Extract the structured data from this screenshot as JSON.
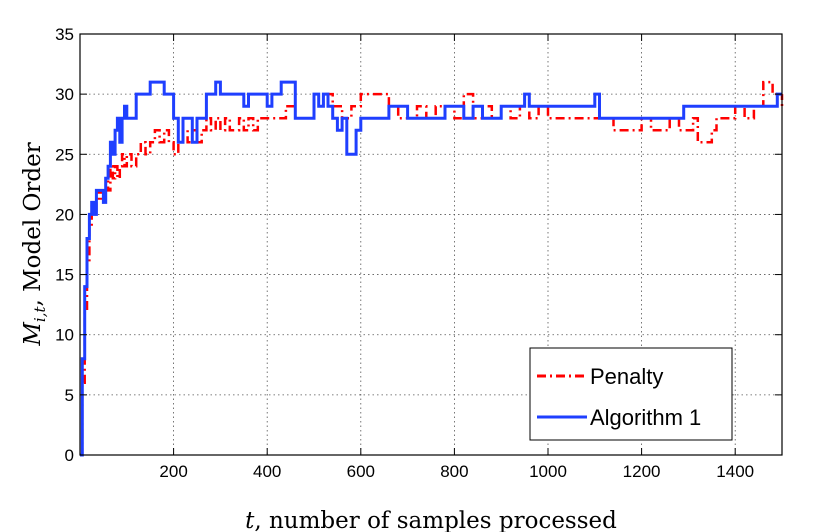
{
  "chart_data": {
    "type": "line",
    "title": "",
    "xlabel": "t, number of samples processed",
    "xlabel_var": "t",
    "xlabel_text": ", number of samples processed",
    "ylabel": "M_{i,t}, Model Order",
    "ylabel_var": "M",
    "ylabel_sub": "i,t",
    "ylabel_text": ", Model Order",
    "xlim": [
      0,
      1500
    ],
    "ylim": [
      0,
      35
    ],
    "xticks": [
      200,
      400,
      600,
      800,
      1000,
      1200,
      1400
    ],
    "yticks": [
      0,
      5,
      10,
      15,
      20,
      25,
      30,
      35
    ],
    "grid": true,
    "legend_position": "bottom-right",
    "series": [
      {
        "name": "Penalty",
        "color": "#ff0000",
        "style": "dash-dot",
        "points": [
          [
            0,
            0
          ],
          [
            5,
            6
          ],
          [
            10,
            12
          ],
          [
            15,
            16
          ],
          [
            20,
            19
          ],
          [
            25,
            21
          ],
          [
            30,
            20
          ],
          [
            35,
            21
          ],
          [
            40,
            22
          ],
          [
            45,
            21
          ],
          [
            50,
            22
          ],
          [
            55,
            23
          ],
          [
            60,
            22
          ],
          [
            65,
            24
          ],
          [
            70,
            23
          ],
          [
            75,
            24
          ],
          [
            80,
            23
          ],
          [
            85,
            24
          ],
          [
            90,
            25
          ],
          [
            95,
            24
          ],
          [
            100,
            25
          ],
          [
            110,
            24
          ],
          [
            120,
            25
          ],
          [
            130,
            26
          ],
          [
            140,
            25
          ],
          [
            150,
            26
          ],
          [
            160,
            27
          ],
          [
            170,
            26
          ],
          [
            180,
            27
          ],
          [
            190,
            26
          ],
          [
            200,
            25
          ],
          [
            210,
            26
          ],
          [
            220,
            27
          ],
          [
            230,
            26
          ],
          [
            240,
            27
          ],
          [
            250,
            26
          ],
          [
            260,
            27
          ],
          [
            270,
            28
          ],
          [
            280,
            27
          ],
          [
            290,
            28
          ],
          [
            300,
            27
          ],
          [
            310,
            28
          ],
          [
            320,
            27
          ],
          [
            340,
            28
          ],
          [
            350,
            27
          ],
          [
            360,
            28
          ],
          [
            370,
            27
          ],
          [
            380,
            28
          ],
          [
            400,
            28
          ],
          [
            420,
            28
          ],
          [
            440,
            29
          ],
          [
            460,
            28
          ],
          [
            480,
            28
          ],
          [
            500,
            29
          ],
          [
            520,
            30
          ],
          [
            540,
            29
          ],
          [
            560,
            28
          ],
          [
            580,
            29
          ],
          [
            600,
            30
          ],
          [
            620,
            30
          ],
          [
            640,
            30
          ],
          [
            660,
            29
          ],
          [
            680,
            28
          ],
          [
            700,
            28
          ],
          [
            720,
            29
          ],
          [
            740,
            28
          ],
          [
            760,
            29
          ],
          [
            780,
            29
          ],
          [
            800,
            28
          ],
          [
            820,
            30
          ],
          [
            840,
            28
          ],
          [
            860,
            29
          ],
          [
            880,
            28
          ],
          [
            900,
            29
          ],
          [
            920,
            28
          ],
          [
            940,
            29
          ],
          [
            960,
            28
          ],
          [
            980,
            29
          ],
          [
            1000,
            28
          ],
          [
            1020,
            28
          ],
          [
            1040,
            28
          ],
          [
            1060,
            28
          ],
          [
            1080,
            28
          ],
          [
            1100,
            28
          ],
          [
            1120,
            28
          ],
          [
            1140,
            27
          ],
          [
            1160,
            27
          ],
          [
            1180,
            27
          ],
          [
            1200,
            28
          ],
          [
            1220,
            27
          ],
          [
            1240,
            27
          ],
          [
            1260,
            28
          ],
          [
            1280,
            27
          ],
          [
            1300,
            27
          ],
          [
            1310,
            28
          ],
          [
            1320,
            26
          ],
          [
            1340,
            26
          ],
          [
            1350,
            27
          ],
          [
            1360,
            28
          ],
          [
            1380,
            28
          ],
          [
            1400,
            29
          ],
          [
            1420,
            28
          ],
          [
            1440,
            29
          ],
          [
            1460,
            31
          ],
          [
            1480,
            30
          ],
          [
            1490,
            29
          ],
          [
            1500,
            30
          ]
        ]
      },
      {
        "name": "Algorithm 1",
        "color": "#1f3fff",
        "style": "solid",
        "points": [
          [
            0,
            0
          ],
          [
            5,
            8
          ],
          [
            10,
            14
          ],
          [
            15,
            18
          ],
          [
            20,
            20
          ],
          [
            25,
            21
          ],
          [
            30,
            20
          ],
          [
            35,
            22
          ],
          [
            45,
            22
          ],
          [
            50,
            21
          ],
          [
            55,
            23
          ],
          [
            60,
            24
          ],
          [
            65,
            26
          ],
          [
            70,
            25
          ],
          [
            75,
            27
          ],
          [
            80,
            28
          ],
          [
            85,
            26
          ],
          [
            90,
            28
          ],
          [
            95,
            29
          ],
          [
            100,
            28
          ],
          [
            120,
            30
          ],
          [
            140,
            30
          ],
          [
            150,
            31
          ],
          [
            170,
            31
          ],
          [
            180,
            30
          ],
          [
            190,
            30
          ],
          [
            200,
            28
          ],
          [
            210,
            26
          ],
          [
            220,
            28
          ],
          [
            230,
            28
          ],
          [
            240,
            26
          ],
          [
            250,
            28
          ],
          [
            260,
            28
          ],
          [
            270,
            30
          ],
          [
            280,
            30
          ],
          [
            290,
            31
          ],
          [
            300,
            30
          ],
          [
            320,
            30
          ],
          [
            340,
            30
          ],
          [
            350,
            29
          ],
          [
            360,
            30
          ],
          [
            380,
            30
          ],
          [
            400,
            29
          ],
          [
            410,
            30
          ],
          [
            420,
            30
          ],
          [
            430,
            31
          ],
          [
            450,
            31
          ],
          [
            460,
            28
          ],
          [
            480,
            28
          ],
          [
            500,
            30
          ],
          [
            510,
            29
          ],
          [
            520,
            30
          ],
          [
            530,
            29
          ],
          [
            540,
            28
          ],
          [
            550,
            27
          ],
          [
            560,
            28
          ],
          [
            570,
            25
          ],
          [
            580,
            25
          ],
          [
            590,
            27
          ],
          [
            600,
            28
          ],
          [
            620,
            28
          ],
          [
            640,
            28
          ],
          [
            660,
            29
          ],
          [
            680,
            29
          ],
          [
            700,
            28
          ],
          [
            720,
            28
          ],
          [
            740,
            28
          ],
          [
            760,
            28
          ],
          [
            780,
            29
          ],
          [
            800,
            29
          ],
          [
            820,
            28
          ],
          [
            840,
            29
          ],
          [
            860,
            28
          ],
          [
            880,
            28
          ],
          [
            900,
            29
          ],
          [
            920,
            29
          ],
          [
            940,
            29
          ],
          [
            950,
            30
          ],
          [
            960,
            29
          ],
          [
            980,
            29
          ],
          [
            1000,
            29
          ],
          [
            1020,
            29
          ],
          [
            1040,
            29
          ],
          [
            1060,
            29
          ],
          [
            1080,
            29
          ],
          [
            1100,
            30
          ],
          [
            1110,
            28
          ],
          [
            1140,
            28
          ],
          [
            1160,
            28
          ],
          [
            1180,
            28
          ],
          [
            1200,
            28
          ],
          [
            1220,
            28
          ],
          [
            1240,
            28
          ],
          [
            1260,
            28
          ],
          [
            1280,
            28
          ],
          [
            1290,
            29
          ],
          [
            1300,
            29
          ],
          [
            1320,
            29
          ],
          [
            1340,
            29
          ],
          [
            1360,
            29
          ],
          [
            1380,
            29
          ],
          [
            1400,
            29
          ],
          [
            1420,
            29
          ],
          [
            1440,
            29
          ],
          [
            1460,
            29
          ],
          [
            1480,
            29
          ],
          [
            1490,
            30
          ],
          [
            1500,
            30
          ]
        ]
      }
    ]
  }
}
